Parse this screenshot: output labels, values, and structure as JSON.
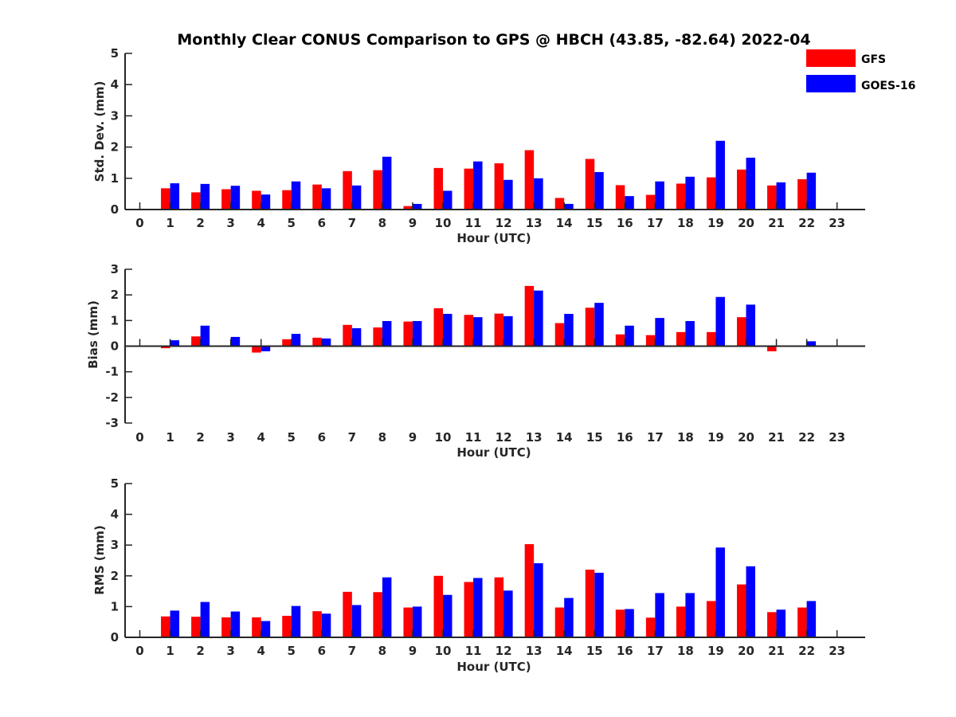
{
  "colors": {
    "GFS": "#ff0000",
    "GOES-16": "#0000ff",
    "axis": "#262626"
  },
  "chart_data": {
    "type": "bar",
    "title": "Monthly Clear CONUS Comparison to GPS @ HBCH (43.85, -82.64) 2022-04",
    "legend": {
      "entries": [
        "GFS",
        "GOES-16"
      ],
      "placement": "top-right"
    },
    "categories": [
      "0",
      "1",
      "2",
      "3",
      "4",
      "5",
      "6",
      "7",
      "8",
      "9",
      "10",
      "11",
      "12",
      "13",
      "14",
      "15",
      "16",
      "17",
      "18",
      "19",
      "20",
      "21",
      "22",
      "23"
    ],
    "panels": [
      {
        "ylabel": "Std. Dev. (mm)",
        "xlabel": "Hour (UTC)",
        "ylim": [
          0,
          5
        ],
        "yticks": [
          "0",
          "1",
          "2",
          "3",
          "4",
          "5"
        ],
        "series": [
          {
            "name": "GFS",
            "values": [
              null,
              0.68,
              0.55,
              0.65,
              0.6,
              0.62,
              0.8,
              1.23,
              1.26,
              0.11,
              1.33,
              1.31,
              1.48,
              1.9,
              0.37,
              1.62,
              0.78,
              0.47,
              0.83,
              1.03,
              1.28,
              0.77,
              0.97,
              null
            ]
          },
          {
            "name": "GOES-16",
            "values": [
              null,
              0.84,
              0.82,
              0.76,
              0.48,
              0.9,
              0.68,
              0.77,
              1.69,
              0.18,
              0.6,
              1.54,
              0.95,
              1.0,
              0.18,
              1.2,
              0.43,
              0.9,
              1.05,
              2.2,
              1.66,
              0.87,
              1.18,
              null
            ]
          }
        ]
      },
      {
        "ylabel": "Bias (mm)",
        "xlabel": "Hour (UTC)",
        "ylim": [
          -3,
          3
        ],
        "yticks": [
          "-3",
          "-2",
          "-1",
          "0",
          "1",
          "2",
          "3"
        ],
        "series": [
          {
            "name": "GFS",
            "values": [
              null,
              -0.08,
              0.38,
              0.02,
              -0.25,
              0.27,
              0.33,
              0.83,
              0.73,
              0.96,
              1.48,
              1.22,
              1.27,
              2.35,
              0.9,
              1.5,
              0.46,
              0.43,
              0.55,
              0.55,
              1.13,
              -0.2,
              0.01,
              null
            ]
          },
          {
            "name": "GOES-16",
            "values": [
              null,
              0.23,
              0.8,
              0.36,
              -0.2,
              0.48,
              0.3,
              0.7,
              0.98,
              0.98,
              1.26,
              1.13,
              1.17,
              2.17,
              1.26,
              1.69,
              0.8,
              1.1,
              0.98,
              1.92,
              1.62,
              0.03,
              0.19,
              null
            ]
          }
        ]
      },
      {
        "ylabel": "RMS (mm)",
        "xlabel": "Hour (UTC)",
        "ylim": [
          0,
          5
        ],
        "yticks": [
          "0",
          "1",
          "2",
          "3",
          "4",
          "5"
        ],
        "series": [
          {
            "name": "GFS",
            "values": [
              null,
              0.68,
              0.67,
              0.65,
              0.65,
              0.7,
              0.85,
              1.48,
              1.47,
              0.97,
              2.0,
              1.8,
              1.95,
              3.03,
              0.97,
              2.2,
              0.9,
              0.64,
              1.0,
              1.18,
              1.72,
              0.82,
              0.97,
              null
            ]
          },
          {
            "name": "GOES-16",
            "values": [
              null,
              0.87,
              1.15,
              0.84,
              0.53,
              1.02,
              0.77,
              1.05,
              1.95,
              1.0,
              1.38,
              1.93,
              1.52,
              2.41,
              1.28,
              2.1,
              0.92,
              1.44,
              1.44,
              2.92,
              2.31,
              0.9,
              1.18,
              null
            ]
          }
        ]
      }
    ]
  }
}
